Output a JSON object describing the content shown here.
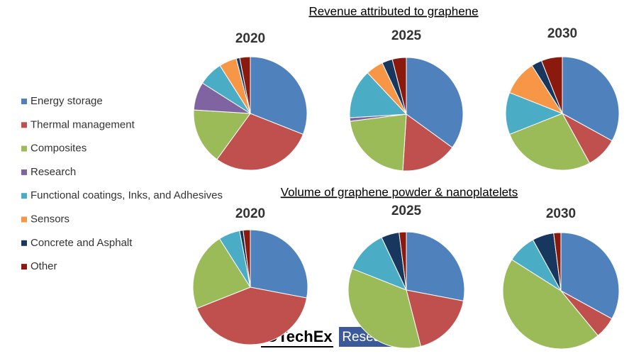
{
  "headings": [
    "Revenue attributed to graphene",
    "Volume of graphene powder & nanoplatelets"
  ],
  "categories": [
    "Energy storage",
    "Thermal management",
    "Composites",
    "Research",
    "Functional coatings, Inks, and Adhesives",
    "Sensors",
    "Concrete and Asphalt",
    "Other"
  ],
  "colors": [
    "#4f81bd",
    "#c0504d",
    "#9bbb59",
    "#8064a2",
    "#4bacc6",
    "#f79646",
    "#17375e",
    "#8b1a0e"
  ],
  "chart_data": [
    {
      "type": "pie",
      "title": "2020",
      "values": [
        31,
        29,
        16,
        8,
        7,
        5,
        1,
        3
      ]
    },
    {
      "type": "pie",
      "title": "2025",
      "values": [
        35,
        16,
        22,
        1,
        14,
        5,
        3,
        4
      ]
    },
    {
      "type": "pie",
      "title": "2030",
      "values": [
        33,
        9,
        27,
        0,
        12,
        10,
        3,
        6
      ]
    },
    {
      "type": "pie",
      "title": "2020",
      "values": [
        28,
        41,
        22,
        0,
        6,
        0,
        1,
        2
      ]
    },
    {
      "type": "pie",
      "title": "2025",
      "values": [
        28,
        18,
        35,
        0,
        12,
        0,
        5,
        2
      ]
    },
    {
      "type": "pie",
      "title": "2030",
      "values": [
        33,
        6,
        45,
        0,
        8,
        0,
        6,
        2
      ]
    }
  ],
  "logo": {
    "name": "IDTechEx",
    "tag": "Research"
  }
}
